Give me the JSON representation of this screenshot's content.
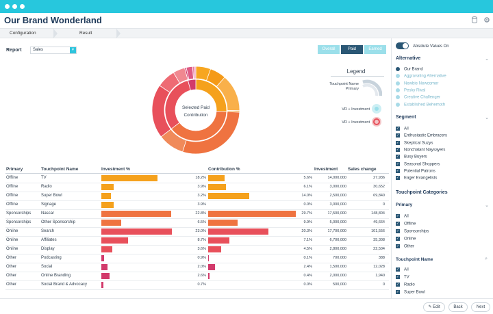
{
  "app": {
    "title": "Our Brand Wonderland"
  },
  "tabs": [
    {
      "label": "Configuration"
    },
    {
      "label": "Result"
    }
  ],
  "report": {
    "label": "Report",
    "select_value": "Sales"
  },
  "view_buttons": [
    {
      "label": "Overall"
    },
    {
      "label": "Paid"
    },
    {
      "label": "Earned"
    }
  ],
  "donut": {
    "center_line1": "Selected Paid",
    "center_line2": "Contribution"
  },
  "legend": {
    "title": "Legend",
    "touchpoint_name_line1": "Touchpoint Name",
    "touchpoint_name_line2": "Primary",
    "vr_investment_1": "VR + Investment",
    "vr_investment_2": "VR + Investment"
  },
  "table": {
    "headers": {
      "primary": "Primary",
      "touchpoint": "Touchpoint Name",
      "investment_pct": "Investment %",
      "contribution_pct": "Contribution %",
      "investment": "Investment",
      "sales_change": "Sales change"
    },
    "rows": [
      {
        "primary": "Offline",
        "touchpoint": "TV",
        "inv_pct": "18.2%",
        "inv": 18.2,
        "con_pct": "5.6%",
        "con": 5.6,
        "investment": "14,000,000",
        "sales": "27,936",
        "color": "#f5a11c"
      },
      {
        "primary": "Offline",
        "touchpoint": "Radio",
        "inv_pct": "3.9%",
        "inv": 3.9,
        "con_pct": "6.1%",
        "con": 6.1,
        "investment": "3,000,000",
        "sales": "30,652",
        "color": "#f5a11c"
      },
      {
        "primary": "Offline",
        "touchpoint": "Super Bowl",
        "inv_pct": "3.2%",
        "inv": 3.2,
        "con_pct": "14.0%",
        "con": 14.0,
        "investment": "2,500,000",
        "sales": "69,840",
        "color": "#f5a11c"
      },
      {
        "primary": "Offline",
        "touchpoint": "Signage",
        "inv_pct": "3.9%",
        "inv": 3.9,
        "con_pct": "0.0%",
        "con": 0.0,
        "investment": "3,000,000",
        "sales": "0",
        "color": "#f5a11c"
      },
      {
        "primary": "Sponsorships",
        "touchpoint": "Nascar",
        "inv_pct": "22.8%",
        "inv": 22.8,
        "con_pct": "29.7%",
        "con": 29.7,
        "investment": "17,500,000",
        "sales": "148,804",
        "color": "#ef7340"
      },
      {
        "primary": "Sponsorships",
        "touchpoint": "Other Sponsorship",
        "inv_pct": "6.5%",
        "inv": 6.5,
        "con_pct": "9.9%",
        "con": 9.9,
        "investment": "5,000,000",
        "sales": "49,664",
        "color": "#ef7340"
      },
      {
        "primary": "Online",
        "touchpoint": "Search",
        "inv_pct": "23.0%",
        "inv": 23.0,
        "con_pct": "20.3%",
        "con": 20.3,
        "investment": "17,700,000",
        "sales": "101,556",
        "color": "#e8505b"
      },
      {
        "primary": "Online",
        "touchpoint": "Affiliates",
        "inv_pct": "8.7%",
        "inv": 8.7,
        "con_pct": "7.1%",
        "con": 7.1,
        "investment": "6,700,000",
        "sales": "35,308",
        "color": "#e8505b"
      },
      {
        "primary": "Online",
        "touchpoint": "Display",
        "inv_pct": "3.6%",
        "inv": 3.6,
        "con_pct": "4.5%",
        "con": 4.5,
        "investment": "2,800,000",
        "sales": "22,504",
        "color": "#e8505b"
      },
      {
        "primary": "Other",
        "touchpoint": "Podcasting",
        "inv_pct": "0.9%",
        "inv": 0.9,
        "con_pct": "0.1%",
        "con": 0.1,
        "investment": "700,000",
        "sales": "388",
        "color": "#d23a6b"
      },
      {
        "primary": "Other",
        "touchpoint": "Social",
        "inv_pct": "2.0%",
        "inv": 2.0,
        "con_pct": "2.4%",
        "con": 2.4,
        "investment": "1,500,000",
        "sales": "12,028",
        "color": "#d23a6b"
      },
      {
        "primary": "Other",
        "touchpoint": "Online Branding",
        "inv_pct": "2.6%",
        "inv": 2.6,
        "con_pct": "0.4%",
        "con": 0.4,
        "investment": "2,000,000",
        "sales": "1,940",
        "color": "#d23a6b"
      },
      {
        "primary": "Other",
        "touchpoint": "Social Brand & Advocacy",
        "inv_pct": "0.7%",
        "inv": 0.7,
        "con_pct": "0.0%",
        "con": 0.0,
        "investment": "500,000",
        "sales": "0",
        "color": "#d23a6b"
      }
    ]
  },
  "sidebar": {
    "toggle_label": "Absolute Values On",
    "alternative": {
      "title": "Alternative",
      "items": [
        "Our Brand",
        "Aggravating Alternative",
        "Newbie Newcomer",
        "Pesky Rival",
        "Creative Challenger",
        "Established Behemoth"
      ]
    },
    "segment": {
      "title": "Segment",
      "items": [
        "All",
        "Enthusiastic Embracers",
        "Skeptical Suzys",
        "Nonchalant Naysayers",
        "Busy Buyers",
        "Seasonal Shoppers",
        "Potential Patrons",
        "Eager Evangelists"
      ]
    },
    "touchpoint_categories": {
      "title": "Touchpoint Categories"
    },
    "primary": {
      "title": "Primary",
      "items": [
        "All",
        "Offline",
        "Sponsorships",
        "Online",
        "Other"
      ]
    },
    "touchpoint_name": {
      "title": "Touchpoint Name",
      "items": [
        "All",
        "TV",
        "Radio",
        "Super Bowl"
      ]
    }
  },
  "footer": {
    "edit": "Edit",
    "back": "Back",
    "next": "Next"
  },
  "colors": {
    "accent": "#27c7dd",
    "navy": "#2a5775",
    "orange": "#f5a11c",
    "coral": "#ef7340",
    "red": "#e8505b",
    "magenta": "#d23a6b"
  }
}
